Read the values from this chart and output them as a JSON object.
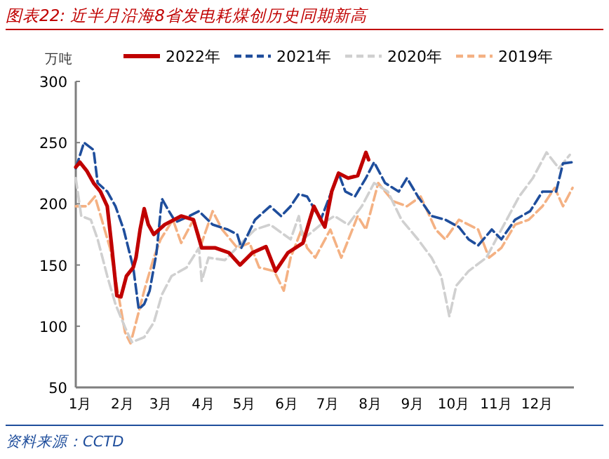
{
  "chart_data": {
    "type": "line",
    "title": "图表22:  近半月沿海8省发电耗煤创历史同期新高",
    "ylabel": "万吨",
    "annotations": [
      "资料来源：CCTD"
    ],
    "xlim": [
      "--01-01",
      "--12-31"
    ],
    "ylim": [
      50,
      300
    ],
    "yticks": [
      50,
      100,
      150,
      200,
      250,
      300
    ],
    "xticks": [
      {
        "value": "--01-01",
        "label": "1月"
      },
      {
        "value": "--02-01",
        "label": "2月"
      },
      {
        "value": "--03-01",
        "label": "3月"
      },
      {
        "value": "--04-01",
        "label": "4月"
      },
      {
        "value": "--05-01",
        "label": "5月"
      },
      {
        "value": "--06-01",
        "label": "6月"
      },
      {
        "value": "--07-01",
        "label": "7月"
      },
      {
        "value": "--08-01",
        "label": "8月"
      },
      {
        "value": "--09-01",
        "label": "9月"
      },
      {
        "value": "--10-01",
        "label": "10月"
      },
      {
        "value": "--11-01",
        "label": "11月"
      },
      {
        "value": "--12-01",
        "label": "12月"
      }
    ],
    "legend": "top",
    "grid": false,
    "series": [
      {
        "name": "2022年",
        "color": "#c00000",
        "line_style": "solid",
        "x": [
          "--01-01",
          "--01-04",
          "--01-09",
          "--01-14",
          "--01-19",
          "--01-24",
          "--01-27",
          "--01-31",
          "--02-03",
          "--02-07",
          "--02-12",
          "--02-14",
          "--02-17",
          "--02-20",
          "--02-23",
          "--02-27",
          "--03-07",
          "--03-19",
          "--03-28",
          "--04-03",
          "--04-13",
          "--04-23",
          "--05-01",
          "--05-10",
          "--05-20",
          "--05-27",
          "--06-05",
          "--06-16",
          "--06-21",
          "--06-24",
          "--06-29",
          "--07-02",
          "--07-07",
          "--07-12",
          "--07-19",
          "--07-26",
          "--08-01",
          "--08-03"
        ],
        "values": [
          230,
          234,
          227,
          217,
          210,
          198,
          168,
          125,
          124,
          141,
          148,
          156,
          179,
          196,
          183,
          175,
          183,
          190,
          187,
          164,
          164,
          160,
          150,
          160,
          165,
          145,
          160,
          168,
          187,
          198,
          187,
          181,
          210,
          225,
          221,
          223,
          242,
          236
        ]
      },
      {
        "name": "2021年",
        "color": "#1f4e9c",
        "line_style": "dashed",
        "x": [
          "--01-01",
          "--01-07",
          "--01-14",
          "--01-17",
          "--01-24",
          "--01-30",
          "--02-05",
          "--02-12",
          "--02-16",
          "--02-20",
          "--02-24",
          "--03-01",
          "--03-04",
          "--03-05",
          "--03-09",
          "--03-15",
          "--03-25",
          "--04-01",
          "--04-11",
          "--04-22",
          "--04-29",
          "--05-02",
          "--05-12",
          "--05-23",
          "--05-31",
          "--06-07",
          "--06-13",
          "--06-19",
          "--06-29",
          "--07-12",
          "--07-17",
          "--07-24",
          "--08-01",
          "--08-07",
          "--08-15",
          "--08-25",
          "--08-31",
          "--09-08",
          "--09-18",
          "--09-28",
          "--10-08",
          "--10-15",
          "--10-22",
          "--11-01",
          "--11-08",
          "--11-18",
          "--11-29",
          "--12-08",
          "--12-18",
          "--12-23",
          "--12-30"
        ],
        "values": [
          229,
          250,
          244,
          217,
          210,
          198,
          179,
          148,
          114,
          118,
          129,
          160,
          194,
          204,
          196,
          185,
          190,
          194,
          183,
          179,
          175,
          164,
          187,
          198,
          190,
          198,
          208,
          206,
          187,
          225,
          210,
          206,
          221,
          234,
          217,
          210,
          221,
          206,
          190,
          187,
          181,
          171,
          166,
          179,
          171,
          187,
          194,
          210,
          210,
          233,
          234
        ]
      },
      {
        "name": "2020年",
        "color": "#d0d0d0",
        "line_style": "dashed",
        "x": [
          "--01-01",
          "--01-05",
          "--01-12",
          "--01-17",
          "--01-24",
          "--01-30",
          "--02-06",
          "--02-11",
          "--02-20",
          "--02-27",
          "--03-05",
          "--03-12",
          "--03-23",
          "--04-01",
          "--04-03",
          "--04-08",
          "--04-20",
          "--05-02",
          "--05-12",
          "--05-23",
          "--06-07",
          "--06-13",
          "--06-16",
          "--06-29",
          "--07-09",
          "--07-19",
          "--07-29",
          "--08-07",
          "--08-17",
          "--08-27",
          "--09-08",
          "--09-18",
          "--09-25",
          "--10-01",
          "--10-06",
          "--10-15",
          "--10-28",
          "--11-08",
          "--11-21",
          "--12-01",
          "--12-11",
          "--12-20",
          "--12-28"
        ],
        "values": [
          221,
          190,
          187,
          171,
          141,
          118,
          99,
          87,
          91,
          103,
          126,
          141,
          148,
          164,
          137,
          156,
          154,
          168,
          179,
          183,
          171,
          190,
          171,
          183,
          190,
          183,
          198,
          217,
          210,
          187,
          171,
          156,
          141,
          108,
          133,
          145,
          156,
          179,
          206,
          221,
          242,
          229,
          240
        ]
      },
      {
        "name": "2019年",
        "color": "#f4b183",
        "line_style": "dashed",
        "x": [
          "--01-01",
          "--01-09",
          "--01-15",
          "--01-20",
          "--01-26",
          "--01-31",
          "--02-06",
          "--02-10",
          "--02-14",
          "--02-20",
          "--02-27",
          "--03-04",
          "--03-13",
          "--03-19",
          "--03-28",
          "--04-03",
          "--04-11",
          "--04-18",
          "--04-29",
          "--05-08",
          "--05-15",
          "--05-26",
          "--06-02",
          "--06-07",
          "--06-15",
          "--06-19",
          "--06-25",
          "--07-06",
          "--07-14",
          "--07-26",
          "--08-01",
          "--08-10",
          "--08-21",
          "--08-31",
          "--09-10",
          "--09-21",
          "--09-28",
          "--10-08",
          "--10-22",
          "--10-30",
          "--11-08",
          "--11-18",
          "--11-28",
          "--12-08",
          "--12-17",
          "--12-23",
          "--12-30"
        ],
        "values": [
          198,
          198,
          206,
          187,
          164,
          133,
          95,
          86,
          103,
          129,
          156,
          171,
          187,
          168,
          187,
          168,
          194,
          179,
          164,
          168,
          148,
          145,
          129,
          156,
          179,
          164,
          156,
          179,
          156,
          190,
          179,
          217,
          202,
          198,
          206,
          179,
          171,
          187,
          179,
          156,
          164,
          183,
          187,
          198,
          213,
          198,
          213
        ]
      }
    ]
  }
}
